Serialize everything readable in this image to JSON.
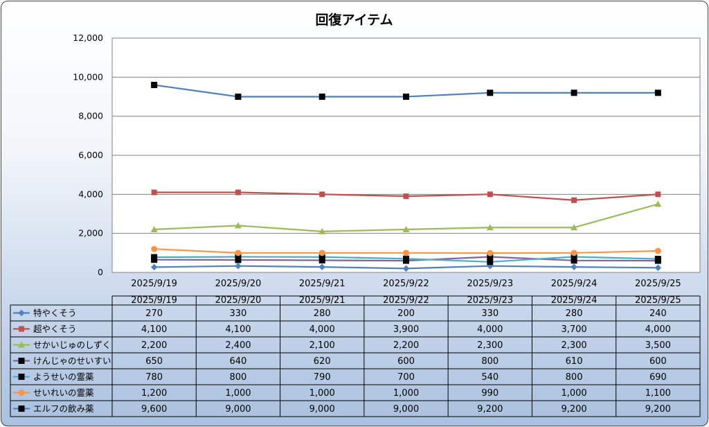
{
  "chart_data": {
    "type": "line",
    "title": "回復アイテム",
    "categories": [
      "2025/9/19",
      "2025/9/20",
      "2025/9/21",
      "2025/9/22",
      "2025/9/23",
      "2025/9/24",
      "2025/9/25"
    ],
    "y_ticks": [
      "0",
      "2,000",
      "4,000",
      "6,000",
      "8,000",
      "10,000",
      "12,000"
    ],
    "ylim": [
      0,
      12000
    ],
    "grid": true,
    "legend": "data-table",
    "series": [
      {
        "name": "特やくそう",
        "color": "#4f81bd",
        "marker": "diamond",
        "values": [
          270,
          330,
          280,
          200,
          330,
          280,
          240
        ],
        "labels": [
          "270",
          "330",
          "280",
          "200",
          "330",
          "280",
          "240"
        ]
      },
      {
        "name": "超やくそう",
        "color": "#c0504d",
        "marker": "square",
        "values": [
          4100,
          4100,
          4000,
          3900,
          4000,
          3700,
          4000
        ],
        "labels": [
          "4,100",
          "4,100",
          "4,000",
          "3,900",
          "4,000",
          "3,700",
          "4,000"
        ]
      },
      {
        "name": "せかいじゅのしずく",
        "color": "#9bbb59",
        "marker": "triangle",
        "values": [
          2200,
          2400,
          2100,
          2200,
          2300,
          2300,
          3500
        ],
        "labels": [
          "2,200",
          "2,400",
          "2,100",
          "2,200",
          "2,300",
          "2,300",
          "3,500"
        ]
      },
      {
        "name": "けんじゃのせいすい",
        "color": "#8064a2",
        "marker": "square-black",
        "values": [
          650,
          640,
          620,
          600,
          800,
          610,
          600
        ],
        "labels": [
          "650",
          "640",
          "620",
          "600",
          "800",
          "610",
          "600"
        ]
      },
      {
        "name": "ようせいの霊薬",
        "color": "#4bacc6",
        "marker": "square-black",
        "values": [
          780,
          800,
          790,
          700,
          540,
          800,
          690
        ],
        "labels": [
          "780",
          "800",
          "790",
          "700",
          "540",
          "800",
          "690"
        ]
      },
      {
        "name": "せいれいの霊薬",
        "color": "#f79646",
        "marker": "circle",
        "values": [
          1200,
          1000,
          1000,
          1000,
          990,
          1000,
          1100
        ],
        "labels": [
          "1,200",
          "1,000",
          "1,000",
          "1,000",
          "990",
          "1,000",
          "1,100"
        ]
      },
      {
        "name": "エルフの飲み薬",
        "color": "#4f81bd",
        "marker": "square-black",
        "values": [
          9600,
          9000,
          9000,
          9000,
          9200,
          9200,
          9200
        ],
        "labels": [
          "9,600",
          "9,000",
          "9,000",
          "9,000",
          "9,200",
          "9,200",
          "9,200"
        ]
      }
    ]
  }
}
